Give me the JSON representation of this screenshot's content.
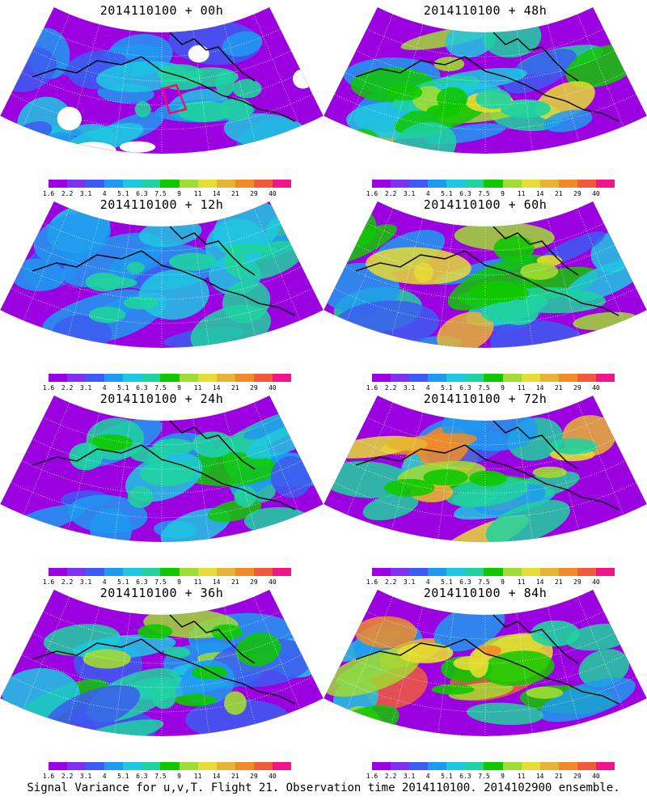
{
  "footer": "Signal Variance for u,v,T. Flight 21. Observation time 2014110100. 2014102900 ensemble.",
  "colorbar": {
    "ticks": [
      "1.6",
      "2.2",
      "3.1",
      "4",
      "5.1",
      "6.3",
      "7.5",
      "9",
      "11",
      "14",
      "21",
      "29",
      "40"
    ],
    "colors": [
      "#9b00e0",
      "#7e32f0",
      "#3c5cf0",
      "#1e9af0",
      "#1ec8e0",
      "#20d2a0",
      "#10c800",
      "#a0dc32",
      "#e6dc32",
      "#e6b432",
      "#f08c28",
      "#f05a3c",
      "#f0148c"
    ]
  },
  "chart_data": [
    {
      "type": "heatmap",
      "title": "2014110100 + 00h",
      "forecast_hour": 0,
      "colorbar_levels": [
        1.6,
        2.2,
        3.1,
        4,
        5.1,
        6.3,
        7.5,
        9,
        11,
        14,
        21,
        29,
        40
      ]
    },
    {
      "type": "heatmap",
      "title": "2014110100 + 48h",
      "forecast_hour": 48,
      "colorbar_levels": [
        1.6,
        2.2,
        3.1,
        4,
        5.1,
        6.3,
        7.5,
        9,
        11,
        14,
        21,
        29,
        40
      ]
    },
    {
      "type": "heatmap",
      "title": "2014110100 + 12h",
      "forecast_hour": 12,
      "colorbar_levels": [
        1.6,
        2.2,
        3.1,
        4,
        5.1,
        6.3,
        7.5,
        9,
        11,
        14,
        21,
        29,
        40
      ]
    },
    {
      "type": "heatmap",
      "title": "2014110100 + 60h",
      "forecast_hour": 60,
      "colorbar_levels": [
        1.6,
        2.2,
        3.1,
        4,
        5.1,
        6.3,
        7.5,
        9,
        11,
        14,
        21,
        29,
        40
      ]
    },
    {
      "type": "heatmap",
      "title": "2014110100 + 24h",
      "forecast_hour": 24,
      "colorbar_levels": [
        1.6,
        2.2,
        3.1,
        4,
        5.1,
        6.3,
        7.5,
        9,
        11,
        14,
        21,
        29,
        40
      ]
    },
    {
      "type": "heatmap",
      "title": "2014110100 + 72h",
      "forecast_hour": 72,
      "colorbar_levels": [
        1.6,
        2.2,
        3.1,
        4,
        5.1,
        6.3,
        7.5,
        9,
        11,
        14,
        21,
        29,
        40
      ]
    },
    {
      "type": "heatmap",
      "title": "2014110100 + 36h",
      "forecast_hour": 36,
      "colorbar_levels": [
        1.6,
        2.2,
        3.1,
        4,
        5.1,
        6.3,
        7.5,
        9,
        11,
        14,
        21,
        29,
        40
      ]
    },
    {
      "type": "heatmap",
      "title": "2014110100 + 84h",
      "forecast_hour": 84,
      "colorbar_levels": [
        1.6,
        2.2,
        3.1,
        4,
        5.1,
        6.3,
        7.5,
        9,
        11,
        14,
        21,
        29,
        40
      ]
    }
  ]
}
